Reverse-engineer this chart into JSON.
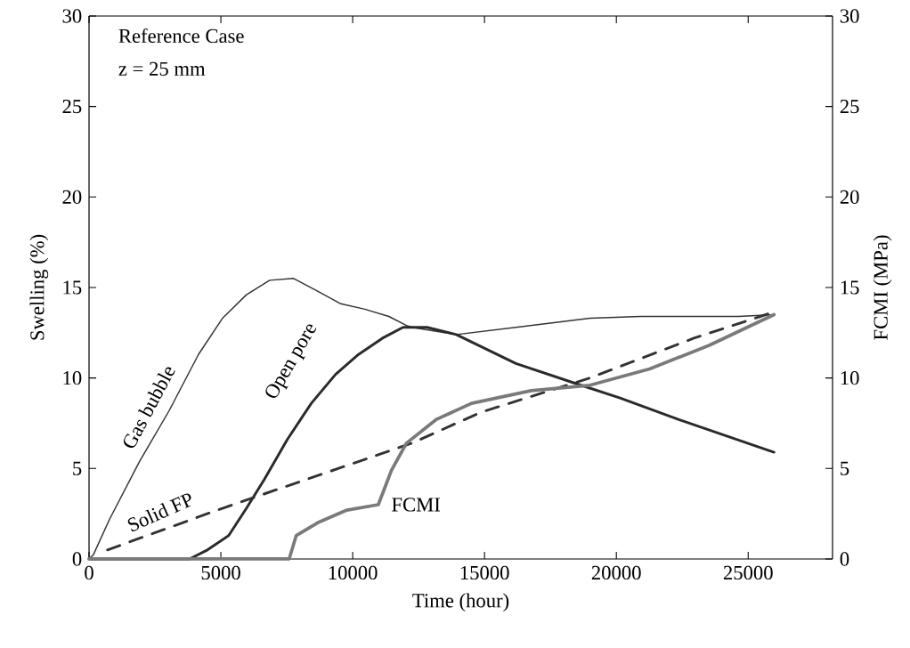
{
  "chart_data": {
    "type": "line",
    "xlabel": "Time (hour)",
    "ylabel": "Swelling (%)",
    "y2label": "FCMI (MPa)",
    "annotations": [
      "Reference Case",
      "z = 25 mm"
    ],
    "xlim": [
      0,
      28200
    ],
    "xticks": [
      0,
      5000,
      10000,
      15000,
      20000,
      25000
    ],
    "ylim": [
      0,
      30
    ],
    "yticks": [
      0,
      5,
      10,
      15,
      20,
      25,
      30
    ],
    "y2lim": [
      0,
      30
    ],
    "y2ticks": [
      0,
      5,
      10,
      15,
      20,
      25,
      30
    ],
    "marker": "none",
    "series": [
      {
        "name": "Gas bubble",
        "color": "#333333",
        "line_style": "solid",
        "x": [
          0,
          170,
          780,
          1920,
          3040,
          4150,
          5060,
          5970,
          6850,
          7760,
          8670,
          9550,
          10460,
          11370,
          12040,
          12250,
          13930,
          16190,
          19000,
          20920,
          24630,
          25980
        ],
        "values": [
          0,
          0.25,
          2.2,
          5.4,
          8.2,
          11.3,
          13.3,
          14.6,
          15.4,
          15.5,
          14.8,
          14.1,
          13.8,
          13.4,
          12.9,
          12.8,
          12.4,
          12.8,
          13.3,
          13.4,
          13.4,
          13.5
        ]
      },
      {
        "name": "Open pore",
        "color": "#2a2a2a",
        "line_style": "solid",
        "x": [
          0,
          3810,
          4490,
          5300,
          5970,
          6650,
          7520,
          8430,
          9350,
          10220,
          11130,
          11910,
          12820,
          13930,
          16190,
          18450,
          20140,
          22370,
          25980
        ],
        "values": [
          0,
          0,
          0.5,
          1.3,
          2.8,
          4.4,
          6.6,
          8.6,
          10.2,
          11.3,
          12.2,
          12.8,
          12.8,
          12.4,
          10.8,
          9.7,
          8.9,
          7.7,
          5.9
        ]
      },
      {
        "name": "Solid FP",
        "color": "#333333",
        "line_style": "dashed",
        "x": [
          700,
          5060,
          12250,
          14850,
          19000,
          22940,
          25880
        ],
        "values": [
          0.5,
          2.8,
          6.4,
          8.1,
          10.0,
          12.2,
          13.6
        ]
      },
      {
        "name": "FCMI",
        "color": "#7a7a7a",
        "line_style": "solid",
        "axis": "y2",
        "x": [
          0,
          7590,
          7860,
          8670,
          9780,
          10970,
          11130,
          11470,
          12040,
          13160,
          14510,
          16770,
          19000,
          21260,
          23520,
          25980
        ],
        "values": [
          0,
          0,
          1.3,
          2.0,
          2.7,
          3.0,
          3.6,
          4.9,
          6.4,
          7.7,
          8.6,
          9.3,
          9.6,
          10.5,
          11.8,
          13.5
        ]
      }
    ]
  }
}
